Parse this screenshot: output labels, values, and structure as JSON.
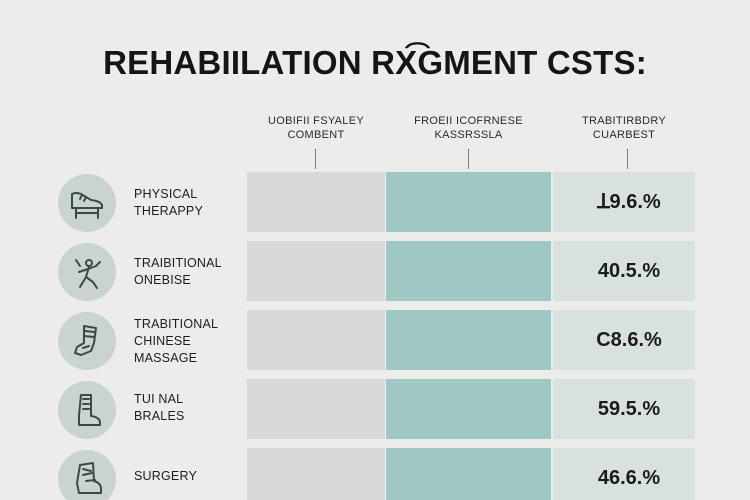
{
  "chart_data": {
    "type": "table",
    "title": "REHABIILATION RX͡GMENT CSTS:",
    "columns": [
      {
        "lines": [
          "UOBIFII FSYALEY",
          "COMBENT"
        ]
      },
      {
        "lines": [
          "FROEII ICOFRNESE",
          "KASSRSSLA"
        ]
      },
      {
        "lines": [
          "TRABITIRBDRY",
          "CUARBEST"
        ]
      }
    ],
    "rows": [
      {
        "label_lines": [
          "PHYSICAL",
          "THERAPPY"
        ],
        "icon": "shoe-icon",
        "value": 79.6,
        "value_text": "ꓕ9.6.%"
      },
      {
        "label_lines": [
          "TRAIBITIONAL",
          "ONEBISE"
        ],
        "icon": "person-walking-icon",
        "value": 40.5,
        "value_text": "40.5.%"
      },
      {
        "label_lines": [
          "TRABITIONAL",
          "CHINESE",
          "MASSAGE"
        ],
        "icon": "brace-icon",
        "value": 78.6,
        "value_text": "C8.6.%"
      },
      {
        "label_lines": [
          "TUI NAL",
          "BRALES"
        ],
        "icon": "boot-icon",
        "value": 59.5,
        "value_text": "59.5.%"
      },
      {
        "label_lines": [
          "SURGERY"
        ],
        "icon": "ankle-boot-icon",
        "value": 46.6,
        "value_text": "46.6.%"
      }
    ],
    "colors": {
      "background": "#ececea",
      "column1": "#d7d9d7",
      "column2": "#9fc8c2",
      "column3": "#d9e1df",
      "icon_circle": "#c9d3d0"
    }
  }
}
